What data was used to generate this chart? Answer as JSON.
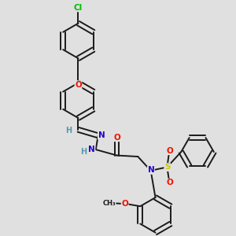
{
  "background_color": "#e0e0e0",
  "bond_color": "#1a1a1a",
  "atom_colors": {
    "Cl": "#00bb00",
    "O": "#ee1100",
    "N": "#2200cc",
    "S": "#cccc00",
    "C": "#1a1a1a",
    "H": "#5599aa"
  },
  "figsize": [
    3.0,
    3.0
  ],
  "dpi": 100
}
